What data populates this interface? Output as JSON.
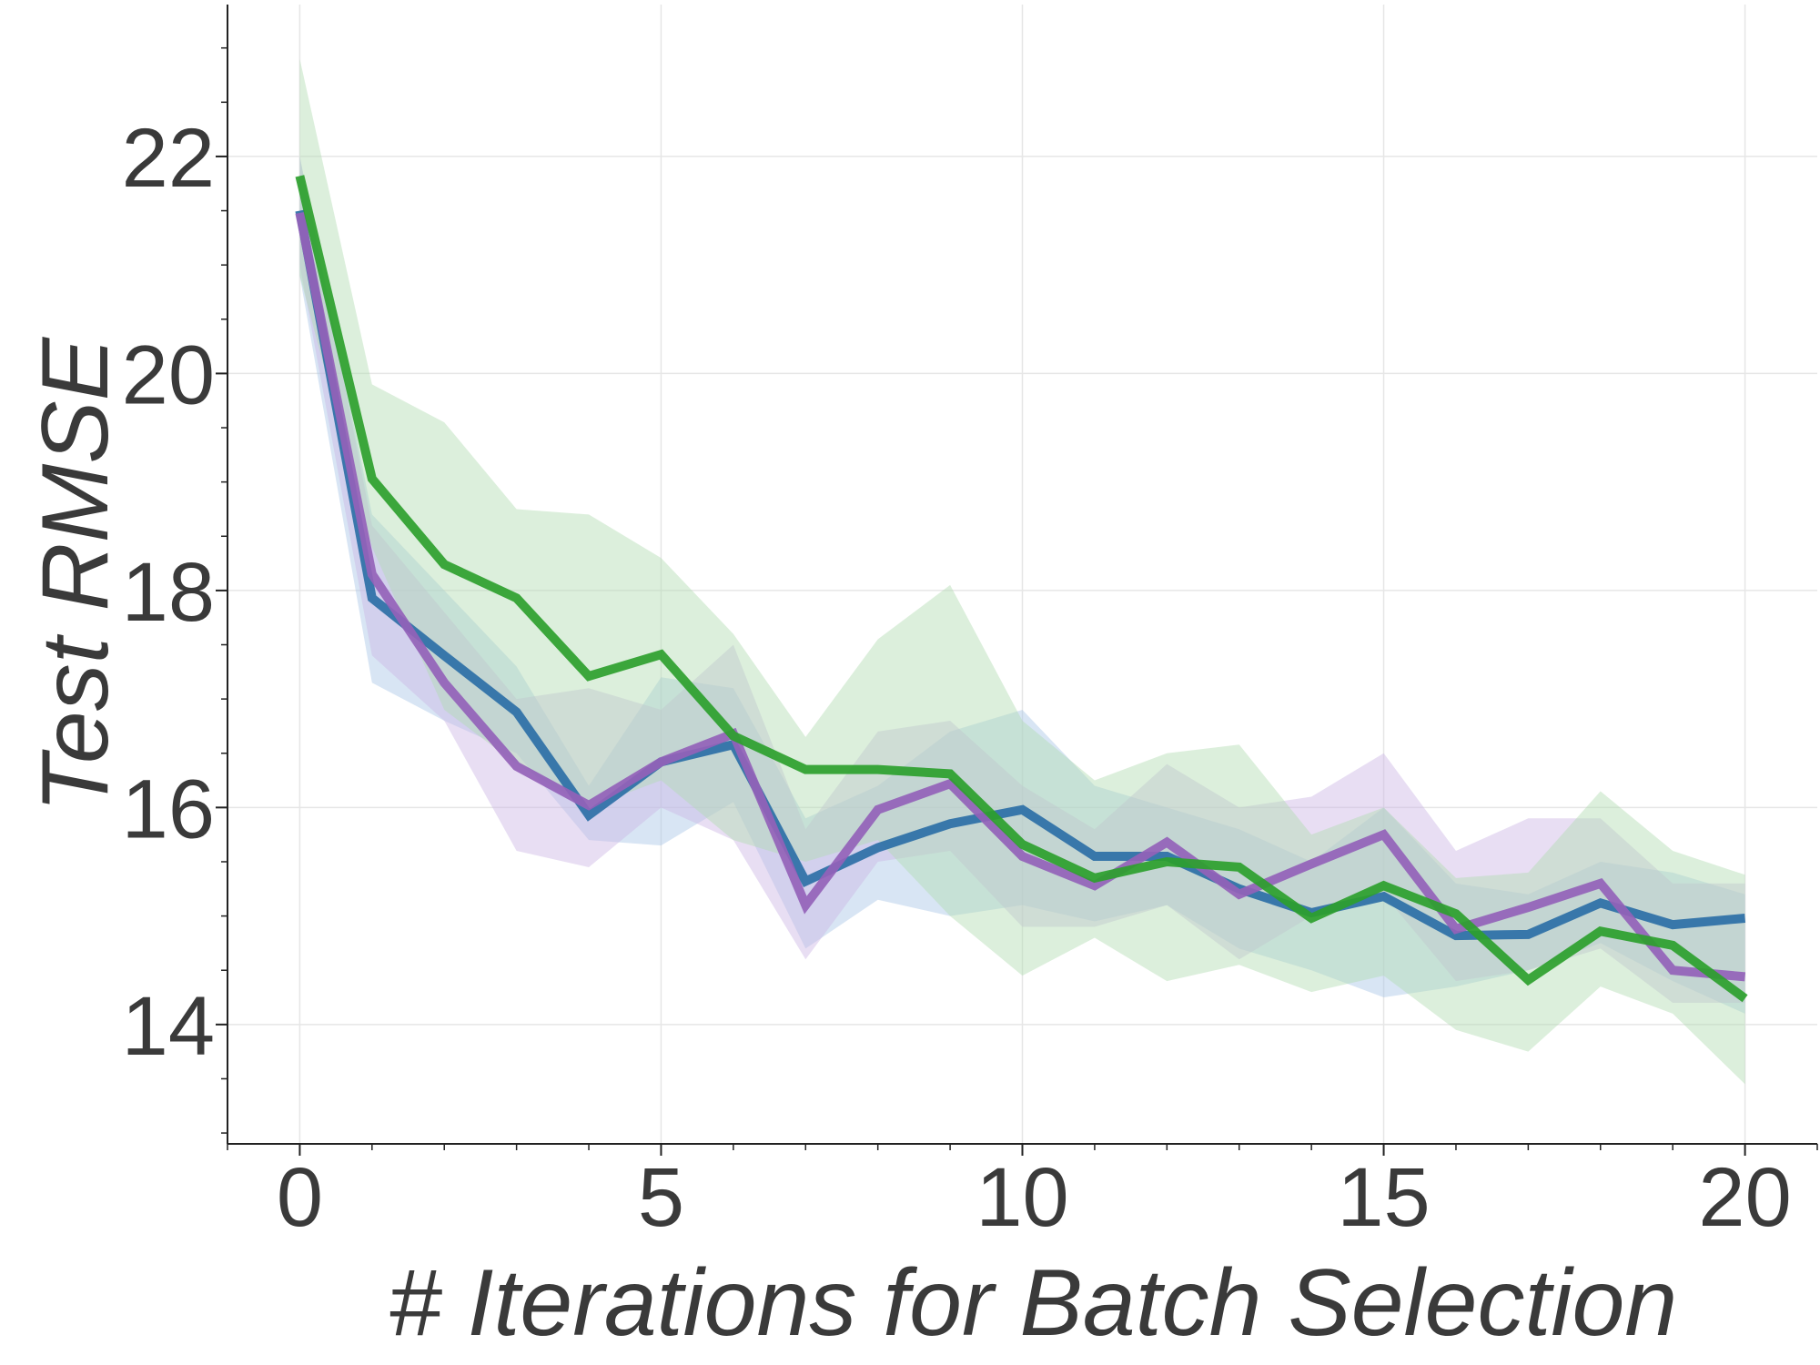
{
  "chart_data": {
    "type": "line",
    "title": "",
    "xlabel": "# Iterations for Batch Selection",
    "ylabel": "Test RMSE",
    "xlim": [
      -1,
      21
    ],
    "ylim": [
      12.9,
      23.4
    ],
    "xticks": [
      0,
      5,
      10,
      15,
      20
    ],
    "yticks": [
      14,
      16,
      18,
      20,
      22
    ],
    "x_minor_step": 1,
    "y_minor_step": 0.5,
    "grid": true,
    "legend": "none",
    "x": [
      0,
      1,
      2,
      3,
      4,
      5,
      6,
      7,
      8,
      9,
      10,
      11,
      12,
      13,
      14,
      15,
      16,
      17,
      18,
      19,
      20
    ],
    "series": [
      {
        "color": "#2c6fa6",
        "band_color": "#a8c6e6",
        "values": [
          21.5,
          17.93,
          17.4,
          16.88,
          15.93,
          16.42,
          16.58,
          15.32,
          15.63,
          15.85,
          15.98,
          15.55,
          15.55,
          15.25,
          15.03,
          15.18,
          14.82,
          14.83,
          15.12,
          14.92,
          14.98
        ],
        "lower": [
          20.9,
          17.15,
          16.8,
          16.5,
          15.7,
          15.65,
          16.05,
          14.7,
          15.15,
          15.0,
          15.1,
          14.95,
          15.1,
          14.7,
          14.5,
          14.25,
          14.35,
          14.5,
          14.75,
          14.4,
          14.1
        ],
        "upper": [
          22.0,
          18.7,
          18.0,
          17.3,
          16.2,
          17.2,
          17.1,
          15.9,
          16.2,
          16.7,
          16.9,
          16.2,
          16.0,
          15.8,
          15.5,
          16.0,
          15.3,
          15.2,
          15.5,
          15.4,
          15.2
        ]
      },
      {
        "color": "#9462b8",
        "band_color": "#cdb6e4",
        "values": [
          21.48,
          18.15,
          17.15,
          16.38,
          16.02,
          16.42,
          16.68,
          15.1,
          15.98,
          16.22,
          15.55,
          15.28,
          15.68,
          15.2,
          15.48,
          15.75,
          14.88,
          15.08,
          15.3,
          14.5,
          14.44
        ],
        "lower": [
          21.0,
          17.4,
          16.8,
          15.6,
          15.45,
          16.0,
          15.7,
          14.6,
          15.5,
          15.6,
          14.9,
          14.9,
          15.1,
          14.6,
          15.0,
          15.2,
          14.4,
          14.5,
          14.7,
          14.2,
          14.2
        ],
        "upper": [
          22.0,
          18.6,
          17.8,
          17.0,
          17.1,
          16.9,
          17.5,
          15.8,
          16.7,
          16.8,
          16.2,
          15.8,
          16.4,
          16.0,
          16.1,
          16.5,
          15.6,
          15.9,
          15.9,
          15.3,
          15.3
        ]
      },
      {
        "color": "#2ca02c",
        "band_color": "#b2dcb2",
        "values": [
          21.82,
          19.03,
          18.24,
          17.93,
          17.21,
          17.41,
          16.66,
          16.35,
          16.35,
          16.31,
          15.66,
          15.35,
          15.5,
          15.45,
          14.98,
          15.28,
          15.02,
          14.41,
          14.86,
          14.73,
          14.24
        ],
        "lower": [
          20.9,
          18.4,
          16.9,
          16.4,
          16.0,
          16.25,
          15.7,
          15.5,
          15.7,
          15.0,
          14.45,
          14.8,
          14.4,
          14.55,
          14.3,
          14.45,
          13.95,
          13.75,
          14.35,
          14.1,
          13.45
        ],
        "upper": [
          22.9,
          19.9,
          19.55,
          18.75,
          18.7,
          18.3,
          17.6,
          16.65,
          17.55,
          18.05,
          16.8,
          16.25,
          16.5,
          16.58,
          15.75,
          16.0,
          15.35,
          15.4,
          16.15,
          15.6,
          15.38
        ]
      }
    ]
  }
}
